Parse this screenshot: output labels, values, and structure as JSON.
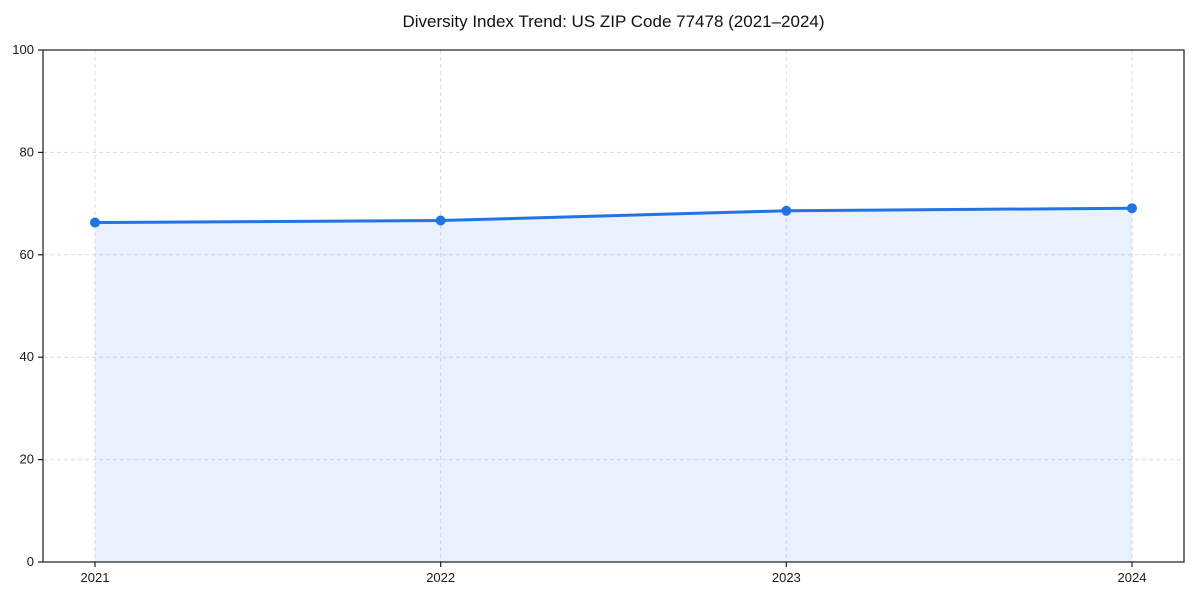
{
  "chart_data": {
    "type": "area",
    "title": "Diversity Index Trend: US ZIP Code 77478 (2021–2024)",
    "categories": [
      "2021",
      "2022",
      "2023",
      "2024"
    ],
    "series": [
      {
        "name": "Diversity Index",
        "values": [
          66.3,
          66.7,
          68.6,
          69.1
        ]
      }
    ],
    "xlabel": "",
    "ylabel": "",
    "ylim": [
      0,
      100
    ],
    "yticks": [
      0,
      20,
      40,
      60,
      80,
      100
    ],
    "grid": true,
    "grid_style": "dashed",
    "legend_position": "none",
    "colors": {
      "line": "#2273e3",
      "marker": "#2273e3",
      "fill": "rgba(34, 115, 227, 0.10)",
      "grid": "#dcdcdc",
      "spine": "#1c1c1c",
      "tick_label": "#1a1a1a",
      "title": "#111111",
      "background": "#ffffff"
    }
  }
}
